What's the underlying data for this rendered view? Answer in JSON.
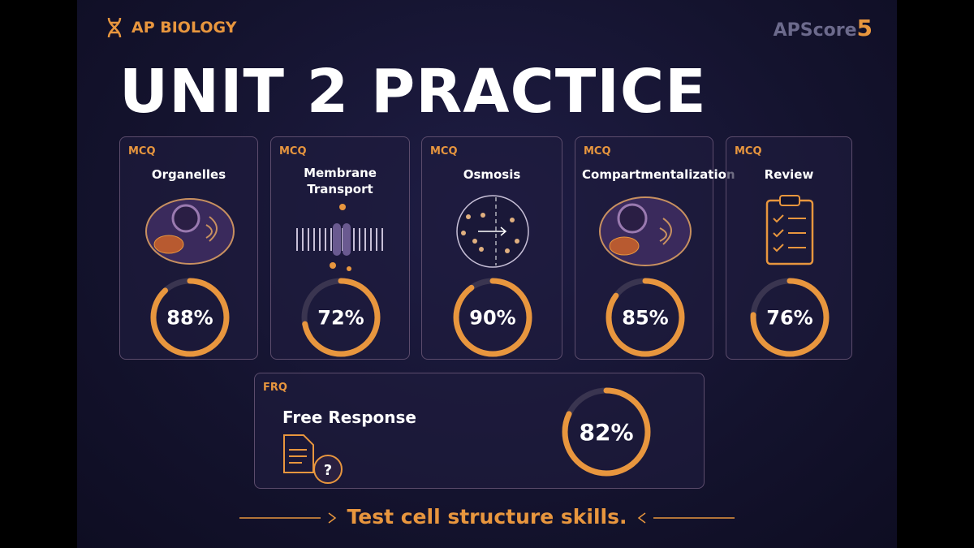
{
  "header": {
    "subject": "AP BIOLOGY",
    "logo": {
      "text": "APScore",
      "number": "5"
    }
  },
  "title": "UNIT 2 PRACTICE",
  "cards": [
    {
      "tag": "MCQ",
      "name": "Organelles",
      "value": 88,
      "value_label": "88%"
    },
    {
      "tag": "MCQ",
      "name": "Membrane Transport",
      "value": 72,
      "value_label": "72%"
    },
    {
      "tag": "MCQ",
      "name": "Osmosis",
      "value": 90,
      "value_label": "90%"
    },
    {
      "tag": "MCQ",
      "name": "Compartmentalization",
      "value": 85,
      "value_label": "85%"
    },
    {
      "tag": "MCQ",
      "name": "Review",
      "value": 76,
      "value_label": "76%"
    }
  ],
  "frq": {
    "tag": "FRQ",
    "name": "Free Response",
    "value": 82,
    "value_label": "82%"
  },
  "footer": "Test cell structure skills."
}
